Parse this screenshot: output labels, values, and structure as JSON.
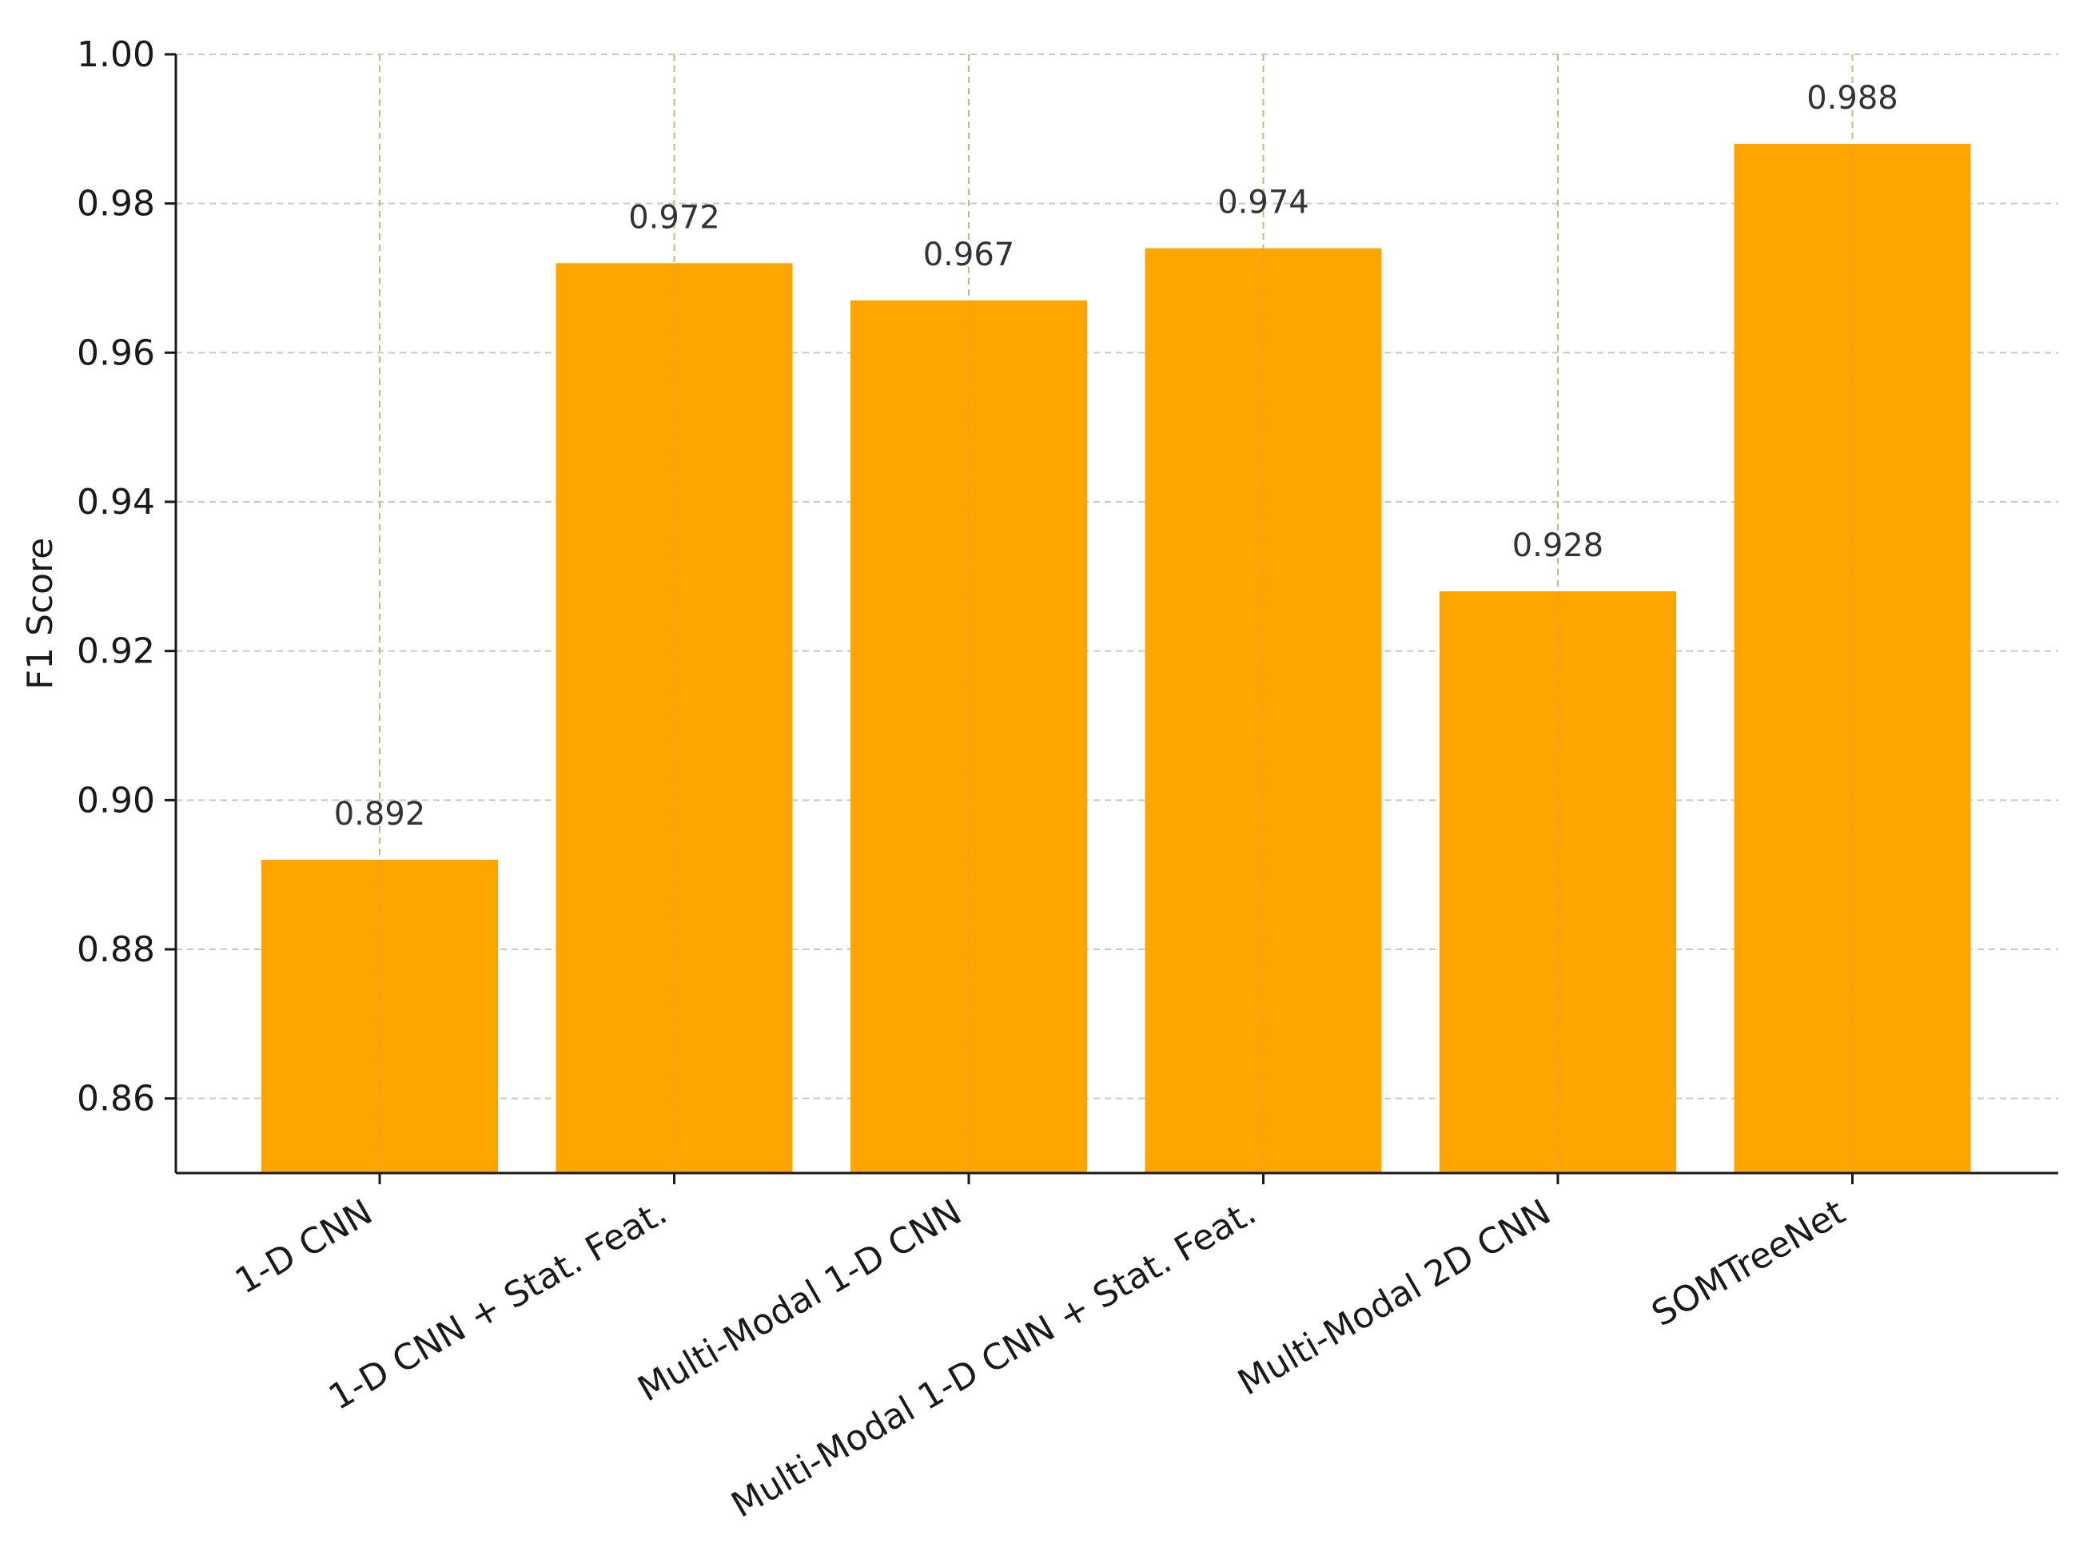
{
  "chart_data": {
    "type": "bar",
    "title": "",
    "xlabel": "",
    "ylabel": "F1 Score",
    "categories": [
      "1-D CNN",
      "1-D CNN + Stat. Feat.",
      "Multi-Modal 1-D CNN",
      "Multi-Modal 1-D CNN + Stat. Feat.",
      "Multi-Modal 2D CNN",
      "SOMTreeNet"
    ],
    "values": [
      0.892,
      0.972,
      0.967,
      0.974,
      0.928,
      0.988
    ],
    "value_labels": [
      "0.892",
      "0.972",
      "0.967",
      "0.974",
      "0.928",
      "0.988"
    ],
    "ylim": [
      0.85,
      1.0
    ],
    "yticks": [
      0.86,
      0.88,
      0.9,
      0.92,
      0.94,
      0.96,
      0.98,
      1.0
    ],
    "ytick_labels": [
      "0.86",
      "0.88",
      "0.90",
      "0.92",
      "0.94",
      "0.96",
      "0.98",
      "1.00"
    ],
    "grid": true,
    "legend": "none",
    "colors": {
      "bar": "#ffa500",
      "grid": "#c8c8c8",
      "axis": "#1a1a1a"
    }
  }
}
